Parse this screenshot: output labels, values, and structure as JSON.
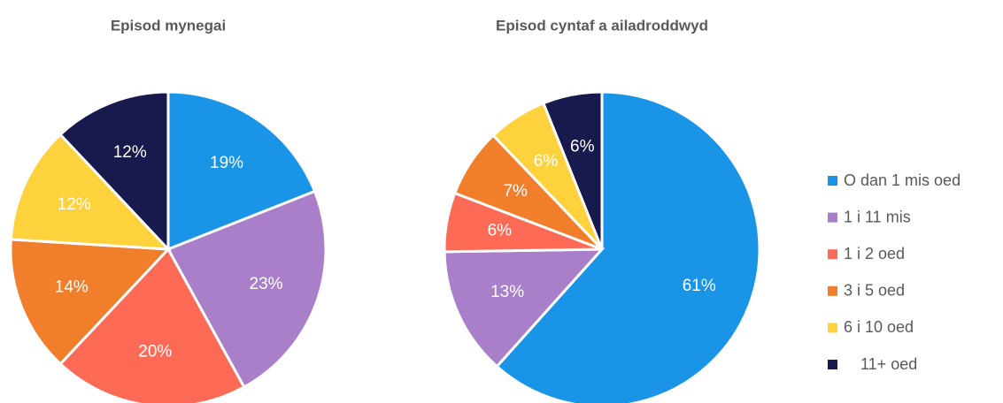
{
  "chart_data": [
    {
      "type": "pie",
      "title": "Episod mynegai",
      "categories": [
        "O dan 1 mis oed",
        "1 i 11 mis",
        "1 i 2 oed",
        "3 i 5 oed",
        "6 i 10 oed",
        "11+ oed"
      ],
      "values": [
        19,
        23,
        20,
        14,
        12,
        12
      ],
      "value_labels": [
        "19%",
        "23%",
        "20%",
        "14%",
        "12%",
        "12%"
      ],
      "colors": [
        "#1a94e6",
        "#a97fc9",
        "#fd6b57",
        "#f07e2b",
        "#fdd23c",
        "#18194c"
      ],
      "legend": "right"
    },
    {
      "type": "pie",
      "title": "Episod cyntaf a ailadroddwyd",
      "categories": [
        "O dan 1 mis oed",
        "1 i 11 mis",
        "1 i 2 oed",
        "3 i 5 oed",
        "6 i 10 oed",
        "11+ oed"
      ],
      "values": [
        61,
        13,
        6,
        7,
        6,
        6
      ],
      "value_labels": [
        "61%",
        "13%",
        "6%",
        "7%",
        "6%",
        "6%"
      ],
      "colors": [
        "#1a94e6",
        "#a97fc9",
        "#fd6b57",
        "#f07e2b",
        "#fdd23c",
        "#18194c"
      ],
      "legend": "right"
    }
  ]
}
